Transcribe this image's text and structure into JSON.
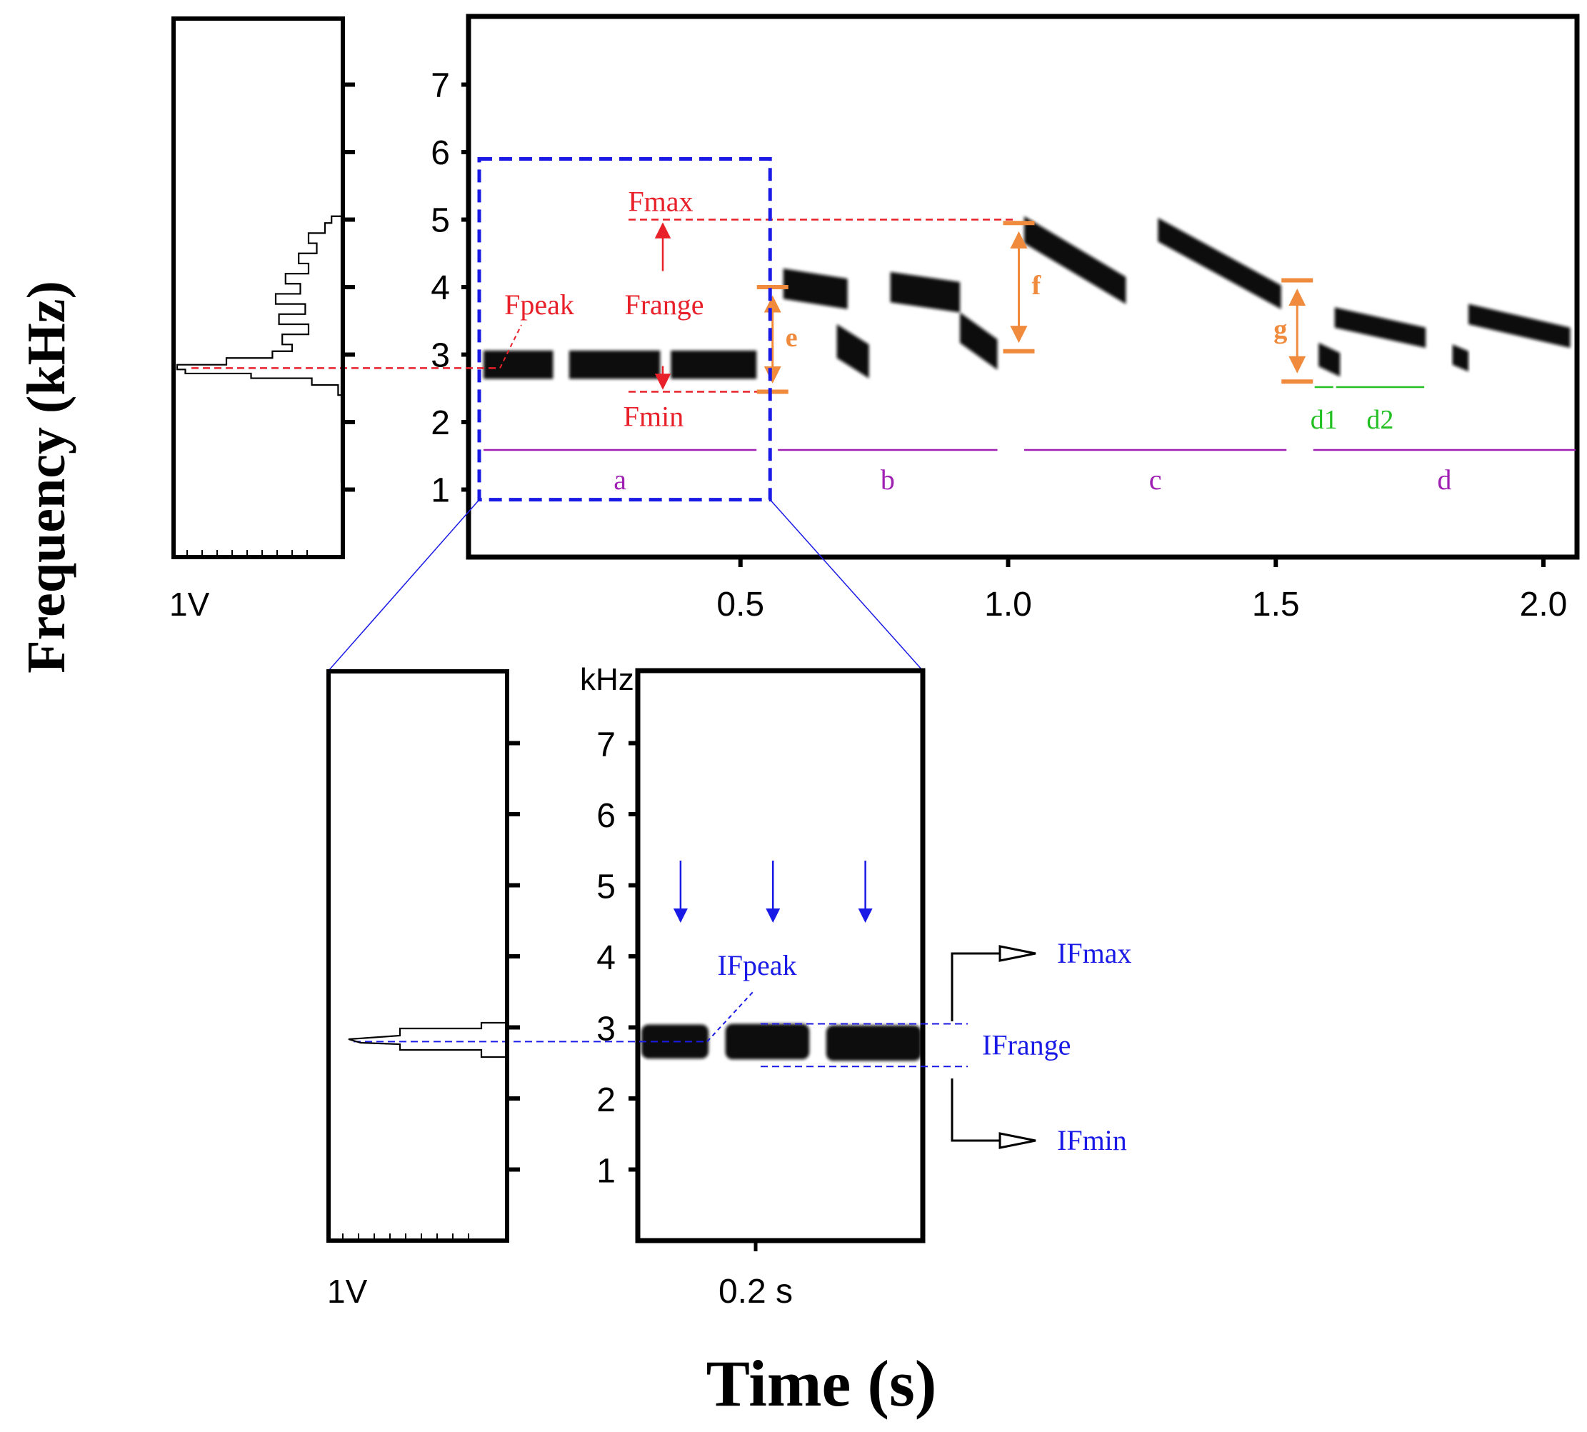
{
  "figure": {
    "y_axis_label": "Frequency (kHz)",
    "x_axis_label": "Time (s)",
    "colors": {
      "red": "#e8202a",
      "orange": "#f08a3c",
      "purple": "#a020b4",
      "green": "#22c022",
      "blue": "#1a1ae6",
      "black": "#000000"
    }
  },
  "chart_data": [
    {
      "type": "spectrogram",
      "name": "full call",
      "ylabel": "Frequency (kHz)",
      "xlabel": "Time (s)",
      "xlim": [
        0,
        2.08
      ],
      "ylim": [
        0,
        8
      ],
      "x_ticks": [
        "0.5",
        "1.0",
        "1.5",
        "2.0"
      ],
      "x_tick_values": [
        0.5,
        1.0,
        1.5,
        2.0
      ],
      "y_ticks": [
        "1",
        "2",
        "3",
        "4",
        "5",
        "6",
        "7"
      ],
      "y_tick_values": [
        1,
        2,
        3,
        4,
        5,
        6,
        7
      ],
      "amplitude_label": "1V",
      "amplitude_spectrum": {
        "kHz": [
          2.4,
          2.55,
          2.65,
          2.72,
          2.78,
          2.85,
          2.95,
          3.05,
          3.15,
          3.3,
          3.45,
          3.6,
          3.75,
          3.9,
          4.05,
          4.2,
          4.35,
          4.5,
          4.65,
          4.8,
          4.95,
          5.05
        ],
        "level": [
          0.02,
          0.18,
          0.55,
          0.95,
          1.0,
          0.7,
          0.42,
          0.3,
          0.36,
          0.2,
          0.38,
          0.22,
          0.4,
          0.25,
          0.34,
          0.2,
          0.26,
          0.15,
          0.2,
          0.1,
          0.06,
          0.0
        ]
      },
      "notes": [
        {
          "segment": "a",
          "t0": 0.02,
          "t1": 0.15,
          "f_start": 2.85,
          "f_end": 2.85,
          "thickness": 0.42
        },
        {
          "segment": "a",
          "t0": 0.18,
          "t1": 0.35,
          "f_start": 2.85,
          "f_end": 2.85,
          "thickness": 0.42
        },
        {
          "segment": "a",
          "t0": 0.37,
          "t1": 0.53,
          "f_start": 2.85,
          "f_end": 2.85,
          "thickness": 0.42
        },
        {
          "segment": "b",
          "t0": 0.58,
          "t1": 0.7,
          "f_start": 4.05,
          "f_end": 3.9,
          "thickness": 0.45
        },
        {
          "segment": "b",
          "t0": 0.68,
          "t1": 0.74,
          "f_start": 3.2,
          "f_end": 2.9,
          "thickness": 0.5
        },
        {
          "segment": "b",
          "t0": 0.78,
          "t1": 0.91,
          "f_start": 4.0,
          "f_end": 3.85,
          "thickness": 0.45
        },
        {
          "segment": "b",
          "t0": 0.91,
          "t1": 0.98,
          "f_start": 3.4,
          "f_end": 3.0,
          "thickness": 0.45
        },
        {
          "segment": "c",
          "t0": 1.03,
          "t1": 1.22,
          "f_start": 4.85,
          "f_end": 3.95,
          "thickness": 0.4
        },
        {
          "segment": "c",
          "t0": 1.28,
          "t1": 1.51,
          "f_start": 4.85,
          "f_end": 3.85,
          "thickness": 0.35
        },
        {
          "segment": "d",
          "t0": 1.58,
          "t1": 1.62,
          "f_start": 3.0,
          "f_end": 2.85,
          "thickness": 0.35
        },
        {
          "segment": "d",
          "t0": 1.61,
          "t1": 1.78,
          "f_start": 3.55,
          "f_end": 3.25,
          "thickness": 0.3
        },
        {
          "segment": "d",
          "t0": 1.83,
          "t1": 1.86,
          "f_start": 3.0,
          "f_end": 2.9,
          "thickness": 0.3
        },
        {
          "segment": "d",
          "t0": 1.86,
          "t1": 2.05,
          "f_start": 3.6,
          "f_end": 3.25,
          "thickness": 0.3
        }
      ],
      "parameters": [
        {
          "label": "Fmax",
          "kHz": 5.0
        },
        {
          "label": "Fpeak",
          "kHz": 2.8
        },
        {
          "label": "Fmin",
          "kHz": 2.45
        },
        {
          "label": "Frange",
          "from_kHz": 2.45,
          "to_kHz": 5.0
        }
      ],
      "intervals": [
        {
          "label": "e",
          "time": 0.56,
          "from_kHz": 2.45,
          "to_kHz": 4.0
        },
        {
          "label": "f",
          "time": 1.02,
          "from_kHz": 3.05,
          "to_kHz": 4.95
        },
        {
          "label": "g",
          "time": 1.54,
          "from_kHz": 2.6,
          "to_kHz": 4.1
        }
      ],
      "durations": [
        {
          "label": "d1",
          "t0": 1.57,
          "t1": 1.61
        },
        {
          "label": "d2",
          "t0": 1.61,
          "t1": 1.78
        }
      ],
      "segments": [
        {
          "label": "a",
          "t0": 0.02,
          "t1": 0.53
        },
        {
          "label": "b",
          "t0": 0.57,
          "t1": 0.98
        },
        {
          "label": "c",
          "t0": 1.03,
          "t1": 1.52
        },
        {
          "label": "d",
          "t0": 1.57,
          "t1": 2.06
        }
      ],
      "zoom_region": {
        "t0": 0.02,
        "t1": 0.55,
        "f0": 0.85,
        "f1": 5.9
      }
    },
    {
      "type": "spectrogram",
      "name": "segment a detail",
      "unit_label": "kHz",
      "y_ticks": [
        "1",
        "2",
        "3",
        "4",
        "5",
        "6",
        "7"
      ],
      "y_tick_values": [
        1,
        2,
        3,
        4,
        5,
        6,
        7
      ],
      "ylim": [
        0,
        7.9
      ],
      "time_label": "0.2 s",
      "amplitude_label": "1V",
      "pulses": [
        {
          "t0": 0.0,
          "t1": 0.24,
          "kHz": 2.8,
          "thickness": 0.48
        },
        {
          "t0": 0.3,
          "t1": 0.6,
          "kHz": 2.8,
          "thickness": 0.5
        },
        {
          "t0": 0.66,
          "t1": 1.0,
          "kHz": 2.78,
          "thickness": 0.5
        }
      ],
      "arrows_at": [
        0.14,
        0.47,
        0.8
      ],
      "parameters": [
        {
          "label": "IFmax",
          "kHz": 3.05
        },
        {
          "label": "IFpeak",
          "kHz": 2.8
        },
        {
          "label": "IFmin",
          "kHz": 2.45
        },
        {
          "label": "IFrange",
          "from_kHz": 2.45,
          "to_kHz": 3.05
        }
      ]
    }
  ]
}
